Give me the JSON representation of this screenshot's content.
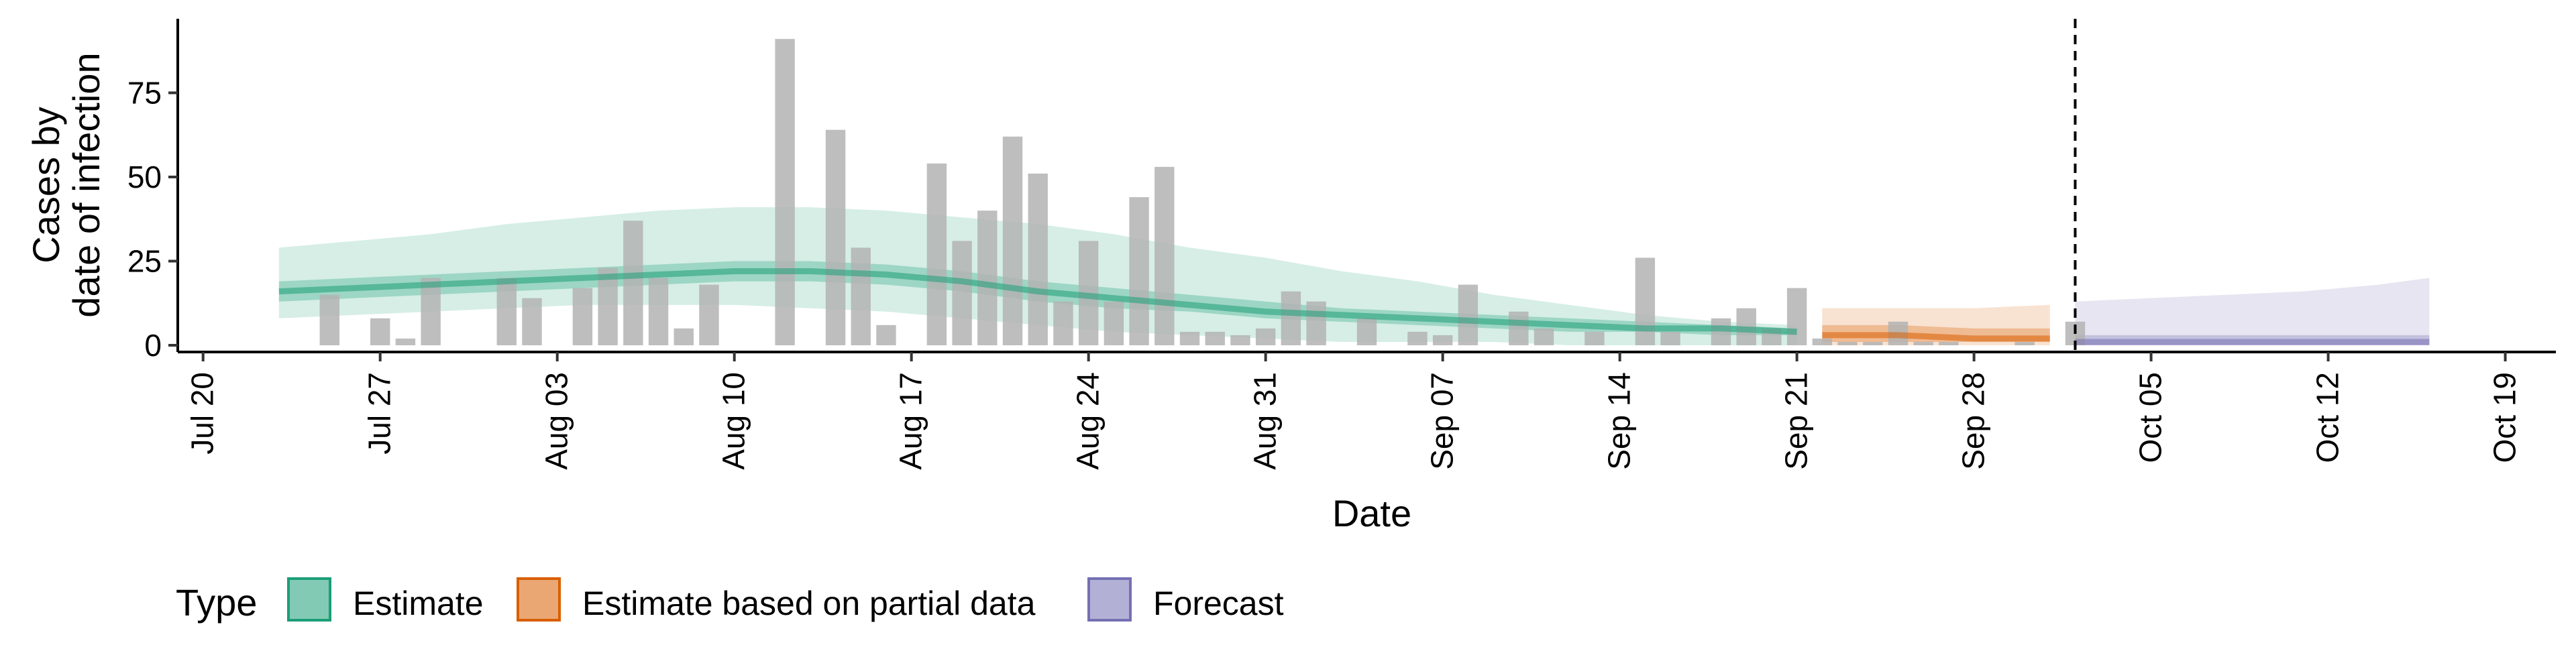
{
  "chart_data": {
    "type": "bar",
    "xlabel": "Date",
    "ylabel": [
      "Cases by",
      "date of infection"
    ],
    "x_ticks": [
      "Jul 20",
      "Jul 27",
      "Aug 03",
      "Aug 10",
      "Aug 17",
      "Aug 24",
      "Aug 31",
      "Sep 07",
      "Sep 14",
      "Sep 21",
      "Sep 28",
      "Oct 05",
      "Oct 12",
      "Oct 19"
    ],
    "x_tick_dates": [
      "2020-07-20",
      "2020-07-27",
      "2020-08-03",
      "2020-08-10",
      "2020-08-17",
      "2020-08-24",
      "2020-08-31",
      "2020-09-07",
      "2020-09-14",
      "2020-09-21",
      "2020-09-28",
      "2020-10-05",
      "2020-10-12",
      "2020-10-19"
    ],
    "y_ticks": [
      0,
      25,
      50,
      75
    ],
    "xlim": [
      "2020-07-19",
      "2020-10-21"
    ],
    "ylim": [
      -2,
      97
    ],
    "grid": false,
    "legend_position": "bottom-left",
    "forecast_line_date": "2020-10-02",
    "legend": {
      "title": "Type",
      "items": [
        {
          "label": "Estimate",
          "fill": "#1b9e77",
          "border": "#1b9e77"
        },
        {
          "label": "Estimate based on partial data",
          "fill": "#d95f02",
          "border": "#d95f02"
        },
        {
          "label": "Forecast",
          "fill": "#7570b3",
          "border": "#7570b3"
        }
      ]
    },
    "colors": {
      "bars": "#b3b3b3",
      "estimate": "#1b9e77",
      "partial": "#d95f02",
      "forecast": "#7570b3"
    },
    "observed_cases": {
      "dates": [
        "2020-07-25",
        "2020-07-27",
        "2020-07-28",
        "2020-07-29",
        "2020-08-01",
        "2020-08-02",
        "2020-08-04",
        "2020-08-05",
        "2020-08-06",
        "2020-08-07",
        "2020-08-08",
        "2020-08-09",
        "2020-08-12",
        "2020-08-14",
        "2020-08-15",
        "2020-08-16",
        "2020-08-18",
        "2020-08-19",
        "2020-08-20",
        "2020-08-21",
        "2020-08-22",
        "2020-08-23",
        "2020-08-24",
        "2020-08-25",
        "2020-08-26",
        "2020-08-27",
        "2020-08-28",
        "2020-08-29",
        "2020-08-30",
        "2020-08-31",
        "2020-09-01",
        "2020-09-02",
        "2020-09-04",
        "2020-09-06",
        "2020-09-07",
        "2020-09-08",
        "2020-09-10",
        "2020-09-11",
        "2020-09-13",
        "2020-09-15",
        "2020-09-16",
        "2020-09-18",
        "2020-09-19",
        "2020-09-20",
        "2020-09-21",
        "2020-09-22",
        "2020-09-23",
        "2020-09-24",
        "2020-09-25",
        "2020-09-26",
        "2020-09-27",
        "2020-09-30",
        "2020-10-02"
      ],
      "values": [
        15,
        8,
        2,
        20,
        20,
        14,
        17,
        23,
        37,
        20,
        5,
        18,
        91,
        64,
        29,
        6,
        54,
        31,
        40,
        62,
        51,
        13,
        31,
        13,
        44,
        53,
        4,
        4,
        3,
        5,
        16,
        13,
        8,
        4,
        3,
        18,
        10,
        5,
        4,
        26,
        4,
        8,
        11,
        5,
        17,
        2,
        1,
        1,
        7,
        1,
        1,
        1,
        7
      ]
    },
    "estimate": {
      "dates": [
        "2020-07-23",
        "2020-07-26",
        "2020-07-29",
        "2020-08-01",
        "2020-08-04",
        "2020-08-07",
        "2020-08-10",
        "2020-08-13",
        "2020-08-16",
        "2020-08-19",
        "2020-08-22",
        "2020-08-25",
        "2020-08-28",
        "2020-08-31",
        "2020-09-03",
        "2020-09-06",
        "2020-09-09",
        "2020-09-12",
        "2020-09-15",
        "2020-09-18",
        "2020-09-21"
      ],
      "median": [
        16,
        17,
        18,
        19,
        20,
        21,
        22,
        22,
        21,
        19,
        16,
        14,
        12,
        10,
        9,
        8,
        7,
        6,
        5,
        5,
        4
      ],
      "inner_lower": [
        13,
        14,
        15,
        16,
        17,
        18,
        19,
        19,
        18,
        16,
        13,
        11,
        10,
        8,
        7,
        6,
        5,
        4,
        4,
        3,
        3
      ],
      "inner_upper": [
        19,
        20,
        21,
        22,
        23,
        24,
        25,
        25,
        24,
        22,
        19,
        17,
        15,
        13,
        11,
        10,
        9,
        8,
        7,
        6,
        5
      ],
      "outer_lower": [
        8,
        9,
        10,
        11,
        12,
        12,
        12,
        11,
        10,
        8,
        6,
        4,
        3,
        2,
        1,
        1,
        1,
        0,
        0,
        0,
        0
      ],
      "outer_upper": [
        29,
        31,
        33,
        36,
        38,
        40,
        41,
        41,
        40,
        38,
        36,
        33,
        29,
        26,
        22,
        19,
        15,
        12,
        9,
        7,
        6
      ]
    },
    "partial": {
      "dates": [
        "2020-09-22",
        "2020-09-25",
        "2020-09-28",
        "2020-10-01"
      ],
      "median": [
        3,
        3,
        2,
        2
      ],
      "inner_lower": [
        1,
        1,
        1,
        1
      ],
      "inner_upper": [
        6,
        6,
        5,
        5
      ],
      "outer_lower": [
        0,
        0,
        0,
        0
      ],
      "outer_upper": [
        11,
        11,
        11,
        12
      ]
    },
    "forecast": {
      "dates": [
        "2020-10-02",
        "2020-10-05",
        "2020-10-08",
        "2020-10-11",
        "2020-10-14",
        "2020-10-16"
      ],
      "median": [
        1,
        1,
        1,
        1,
        1,
        1
      ],
      "inner_lower": [
        0,
        0,
        0,
        0,
        0,
        0
      ],
      "inner_upper": [
        3,
        3,
        3,
        3,
        3,
        3
      ],
      "outer_lower": [
        0,
        0,
        0,
        0,
        0,
        0
      ],
      "outer_upper": [
        13,
        14,
        15,
        16,
        18,
        20
      ]
    }
  }
}
